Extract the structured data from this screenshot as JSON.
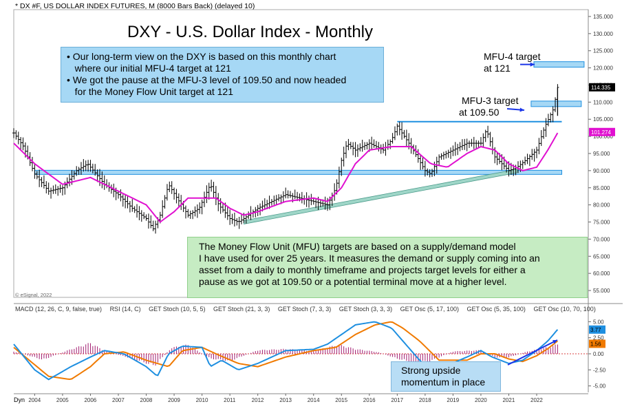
{
  "header": "* DX #F, US DOLLAR INDEX FUTURES, M (8000 Bars Back) (delayed 10)",
  "copyright": "© eSignal, 2022",
  "chart_data": [
    {
      "type": "line",
      "title": "DXY - U.S. Dollar Index - Monthly",
      "yticks": [
        "135.000",
        "130.000",
        "125.000",
        "120.000",
        "115.000",
        "110.000",
        "105.000",
        "100.000",
        "95.000",
        "90.000",
        "85.000",
        "80.000",
        "75.000",
        "70.000",
        "65.000",
        "60.000",
        "55.000"
      ],
      "ylim": [
        53,
        137
      ],
      "last_price_label": "114.335",
      "last_price": 114.335,
      "ma_label": "101.274",
      "ma_value": 101.274,
      "levels": [
        {
          "name": "resistance",
          "x": [
            2017.0,
            2022.9
          ],
          "y": 104.3
        },
        {
          "name": "support",
          "x": [
            2004.0,
            2022.9
          ],
          "y": 89.5
        }
      ],
      "trendline": {
        "x": [
          2011.5,
          2021.3
        ],
        "y": [
          75.0,
          90.0
        ]
      },
      "targets": [
        {
          "label": "MFU-3 target",
          "value_label": "at 109.50",
          "y": 109.5,
          "x": [
            2021.8,
            2023.6
          ]
        },
        {
          "label": "MFU-4 target",
          "value_label": "at 121",
          "y": 121,
          "x": [
            2021.9,
            2023.7
          ]
        }
      ],
      "price_anchors": {
        "x": [
          2003.25,
          2003.6,
          2004.0,
          2004.5,
          2005.0,
          2005.5,
          2005.9,
          2006.5,
          2007.0,
          2007.5,
          2008.0,
          2008.25,
          2008.5,
          2008.8,
          2009.1,
          2009.5,
          2009.9,
          2010.3,
          2010.6,
          2011.0,
          2011.3,
          2011.5,
          2012.0,
          2012.5,
          2013.0,
          2013.5,
          2014.0,
          2014.5,
          2014.8,
          2015.0,
          2015.2,
          2015.5,
          2016.0,
          2016.5,
          2016.8,
          2017.0,
          2017.5,
          2018.0,
          2018.2,
          2018.5,
          2019.0,
          2019.5,
          2020.0,
          2020.2,
          2020.5,
          2021.0,
          2021.3,
          2021.6,
          2022.0,
          2022.3,
          2022.6,
          2022.75
        ],
        "y": [
          101,
          97,
          89,
          84,
          85,
          90,
          92,
          86,
          83,
          79,
          76,
          73,
          77,
          86,
          82,
          77,
          79,
          86,
          80,
          76,
          75,
          76,
          79,
          81,
          83,
          82,
          81,
          80,
          85,
          93,
          98,
          96,
          98,
          96,
          99,
          103,
          97,
          90,
          89,
          94,
          96,
          98,
          98,
          102,
          94,
          90,
          91,
          93,
          96,
          103,
          108,
          114.3
        ]
      },
      "ma_anchors": {
        "x": [
          2003.25,
          2004.0,
          2005.0,
          2006.0,
          2007.0,
          2008.0,
          2008.5,
          2009.0,
          2009.5,
          2010.5,
          2011.0,
          2011.5,
          2012.0,
          2013.0,
          2014.0,
          2014.5,
          2015.0,
          2015.5,
          2016.0,
          2016.8,
          2017.5,
          2018.2,
          2018.8,
          2019.5,
          2020.0,
          2020.5,
          2021.0,
          2021.5,
          2022.0,
          2022.4,
          2022.75
        ],
        "y": [
          98,
          92,
          86,
          88,
          84,
          80,
          75,
          78,
          82,
          82,
          79,
          77,
          78,
          81,
          82,
          81,
          85,
          92,
          96,
          97,
          97,
          92,
          91,
          95,
          97,
          96,
          92,
          90,
          91,
          96,
          101
        ]
      },
      "x_labels": [
        "2004",
        "2005",
        "2006",
        "2007",
        "2008",
        "2009",
        "2010",
        "2011",
        "2012",
        "2013",
        "2014",
        "2015",
        "2016",
        "2017",
        "2018",
        "2019",
        "2020",
        "2021",
        "2022"
      ],
      "annotations": {
        "box1": [
          "• Our long-term view on the DXY is based on this monthly chart",
          "   where our initial MFU-4 target at 121",
          "• We got the pause at the MFU-3 level of 109.50 and now headed",
          "   for the Money Flow Unit target at 121"
        ],
        "box2": [
          "The Money Flow Unit (MFU) targets are based on a supply/demand model",
          "I have used for over 25 years.  It measures the demand or supply coming into an",
          "asset from a daily to monthly timeframe and projects target levels for either a",
          "pause as we got at 109.50 or a potential terminal move at a higher level."
        ],
        "mfu4": [
          "MFU-4 target",
          "at 121"
        ],
        "mfu3": [
          "MFU-3 target",
          "at 109.50"
        ]
      }
    },
    {
      "type": "line",
      "title": "MACD (12, 26, C, 9, false, true)",
      "yticks": [
        "5.00",
        "2.50",
        "0.00",
        "-2.50",
        "-5.00"
      ],
      "ylim": [
        -6,
        6
      ],
      "value_labels": {
        "macd": "3.77",
        "hist": "1.56"
      },
      "macd_anchors": {
        "x": [
          2003.25,
          2004.0,
          2004.5,
          2005.3,
          2006.0,
          2006.5,
          2007.2,
          2008.0,
          2008.4,
          2008.8,
          2009.3,
          2010.0,
          2010.3,
          2010.7,
          2011.3,
          2012.0,
          2013.0,
          2014.0,
          2014.5,
          2015.0,
          2015.5,
          2016.2,
          2016.8,
          2017.2,
          2017.8,
          2018.2,
          2018.7,
          2019.5,
          2020.0,
          2020.4,
          2021.0,
          2021.5,
          2022.0,
          2022.4,
          2022.75
        ],
        "y": [
          1.5,
          -2.5,
          -4.0,
          -2.0,
          -0.5,
          0.5,
          0.0,
          -2.0,
          -3.5,
          0.0,
          1.2,
          1.0,
          -2.0,
          -1.0,
          -2.5,
          -1.5,
          0.5,
          0.7,
          1.5,
          3.0,
          4.5,
          5.0,
          4.0,
          2.0,
          -1.0,
          -2.5,
          -2.0,
          -0.5,
          0.5,
          -0.5,
          -1.5,
          -1.0,
          0.5,
          2.0,
          3.77
        ]
      },
      "signal_anchors": {
        "x": [
          2003.25,
          2004.5,
          2005.3,
          2006.0,
          2006.5,
          2007.2,
          2008.0,
          2008.8,
          2009.3,
          2010.0,
          2010.5,
          2011.3,
          2012.0,
          2013.0,
          2014.0,
          2014.8,
          2015.5,
          2016.2,
          2016.8,
          2017.2,
          2017.8,
          2018.5,
          2019.5,
          2020.0,
          2020.5,
          2021.0,
          2021.5,
          2022.0,
          2022.4,
          2022.75
        ],
        "y": [
          1.0,
          -3.5,
          -4.0,
          -2.0,
          0.0,
          0.3,
          -1.0,
          -2.0,
          0.5,
          1.0,
          0.0,
          -1.5,
          -2.0,
          -0.5,
          0.5,
          1.0,
          3.0,
          4.5,
          5.0,
          4.0,
          2.0,
          -1.0,
          -1.0,
          0.0,
          0.0,
          -0.8,
          -1.2,
          -0.3,
          0.8,
          2.0
        ]
      },
      "hist_anchors": {
        "x": [
          2003.25,
          2004.3,
          2005.2,
          2006.0,
          2006.5,
          2007.5,
          2008.3,
          2008.9,
          2009.5,
          2010.3,
          2011.0,
          2012.0,
          2013.0,
          2014.0,
          2014.9,
          2015.5,
          2016.3,
          2017.0,
          2017.6,
          2018.2,
          2019.0,
          2020.0,
          2020.5,
          2021.0,
          2021.6,
          2022.0,
          2022.5,
          2022.75
        ],
        "y": [
          0.4,
          -1.0,
          0.6,
          1.8,
          0.5,
          -0.8,
          -2.0,
          1.0,
          1.5,
          -0.8,
          -1.2,
          0.6,
          0.8,
          0.5,
          1.5,
          0.8,
          0.3,
          -0.8,
          -1.5,
          -1.2,
          0.4,
          0.6,
          -0.6,
          -0.6,
          0.3,
          0.7,
          1.2,
          1.56
        ]
      },
      "colors": {
        "macd": "#1e8fe0",
        "signal": "#f07a00",
        "hist": "#a0196e"
      }
    }
  ],
  "indicator_tabs": [
    "MACD (12, 26, C, 9, false, true)",
    "RSI (14, C)",
    "GET Stoch (10, 5, 5)",
    "GET Stoch (21, 3, 3)",
    "GET Stoch (7, 3, 3)",
    "GET Stoch (3, 3, 3)",
    "GET Osc (5, 17, 100)",
    "GET Osc (5, 35, 100)",
    "GET Osc (10, 70, 100)"
  ],
  "momentum_note": [
    "Strong upside",
    "momentum in place"
  ],
  "dyn_label": "Dyn",
  "colors": {
    "price": "#000000",
    "ma": "#e010d0",
    "level": "#1e8fe0",
    "target_fill": "#a6d8f5",
    "trend_fill": "#9fd6c8",
    "arrow": "#1a35e8",
    "panel_bg": "#ffffff",
    "price_tag": "#000000",
    "ma_tag": "#e010d0"
  }
}
